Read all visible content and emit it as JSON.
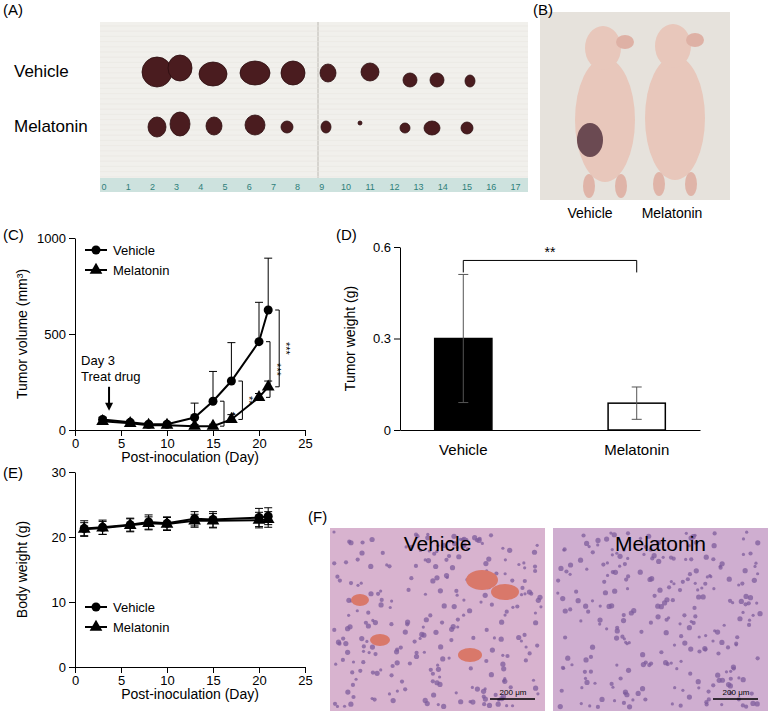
{
  "chart_data": [
    {
      "type": "line",
      "x_label": "Post-inoculation (Day)",
      "y_label": "Tumor volume (mm³)",
      "x": [
        3,
        6,
        8,
        10,
        13,
        15,
        17,
        20,
        21
      ],
      "series": [
        {
          "name": "Vehicle",
          "color": "#000000",
          "marker": "circle",
          "values": [
            55,
            40,
            30,
            30,
            65,
            150,
            255,
            460,
            625
          ],
          "errors": [
            10,
            8,
            8,
            10,
            75,
            155,
            200,
            205,
            270
          ]
        },
        {
          "name": "Melatonin",
          "color": "#000000",
          "marker": "triangle",
          "values": [
            45,
            35,
            25,
            25,
            20,
            20,
            55,
            170,
            225
          ],
          "errors": [
            8,
            6,
            6,
            6,
            8,
            10,
            25,
            20,
            30
          ]
        }
      ],
      "xlim": [
        0,
        25
      ],
      "xticks": [
        0,
        5,
        10,
        15,
        20,
        25
      ],
      "ylim": [
        0,
        1000
      ],
      "yticks": [
        0,
        500,
        1000
      ],
      "legend": "upper left",
      "annotations": [
        {
          "text": [
            "Day 3",
            "Treat drug"
          ],
          "x": 3.7,
          "y": 100
        }
      ],
      "significance": [
        {
          "x": 15,
          "label": "*"
        },
        {
          "x": 17,
          "label": "**"
        },
        {
          "x": 20,
          "label": "***"
        },
        {
          "x": 21,
          "label": "***"
        }
      ]
    },
    {
      "type": "bar",
      "y_label": "Tumor weight (g)",
      "categories": [
        "Vehicle",
        "Melatonin"
      ],
      "values": [
        0.3,
        0.088
      ],
      "errors": [
        0.21,
        0.053
      ],
      "colors": [
        "#000000",
        "#ffffff"
      ],
      "ylim": [
        0,
        0.6
      ],
      "yticks": [
        0,
        0.3,
        0.6
      ],
      "significance": [
        {
          "between": [
            0,
            1
          ],
          "label": "**"
        }
      ]
    },
    {
      "type": "line",
      "x_label": "Post-inoculation (Day)",
      "y_label": "Body weight (g)",
      "x": [
        1,
        3,
        6,
        8,
        10,
        13,
        15,
        20,
        21
      ],
      "series": [
        {
          "name": "Vehicle",
          "color": "#000000",
          "marker": "circle",
          "values": [
            21.3,
            21.5,
            21.9,
            22.3,
            22.1,
            22.8,
            22.7,
            23.0,
            23.2
          ],
          "errors": [
            1.2,
            1.1,
            1.0,
            1.1,
            1.0,
            1.1,
            1.2,
            1.4,
            1.3
          ]
        },
        {
          "name": "Melatonin",
          "color": "#000000",
          "marker": "triangle",
          "values": [
            21.2,
            21.4,
            21.8,
            22.1,
            22.0,
            22.5,
            22.5,
            22.6,
            22.7
          ],
          "errors": [
            1.0,
            1.0,
            1.0,
            1.0,
            1.0,
            1.0,
            1.1,
            1.2,
            1.2
          ]
        }
      ],
      "xlim": [
        0,
        25
      ],
      "xticks": [
        0,
        5,
        10,
        15,
        20,
        25
      ],
      "ylim": [
        0,
        30
      ],
      "yticks": [
        0,
        10,
        20,
        30
      ],
      "legend": "lower left"
    }
  ],
  "figure": {
    "panel_labels": [
      "(A)",
      "(B)",
      "(C)",
      "(D)",
      "(E)",
      "(F)"
    ],
    "panel_a": {
      "row_labels": [
        "Vehicle",
        "Melatonin"
      ],
      "ruler": [
        0,
        1,
        2,
        3,
        4,
        5,
        6,
        7,
        8,
        9,
        10,
        11,
        12,
        13,
        14,
        15,
        16,
        17
      ]
    },
    "panel_b": {
      "labels": [
        "Vehicle",
        "Melatonin"
      ]
    },
    "panel_f": {
      "titles": [
        "Vehicle",
        "Melatonin"
      ],
      "scale_bar": "200 μm"
    }
  }
}
